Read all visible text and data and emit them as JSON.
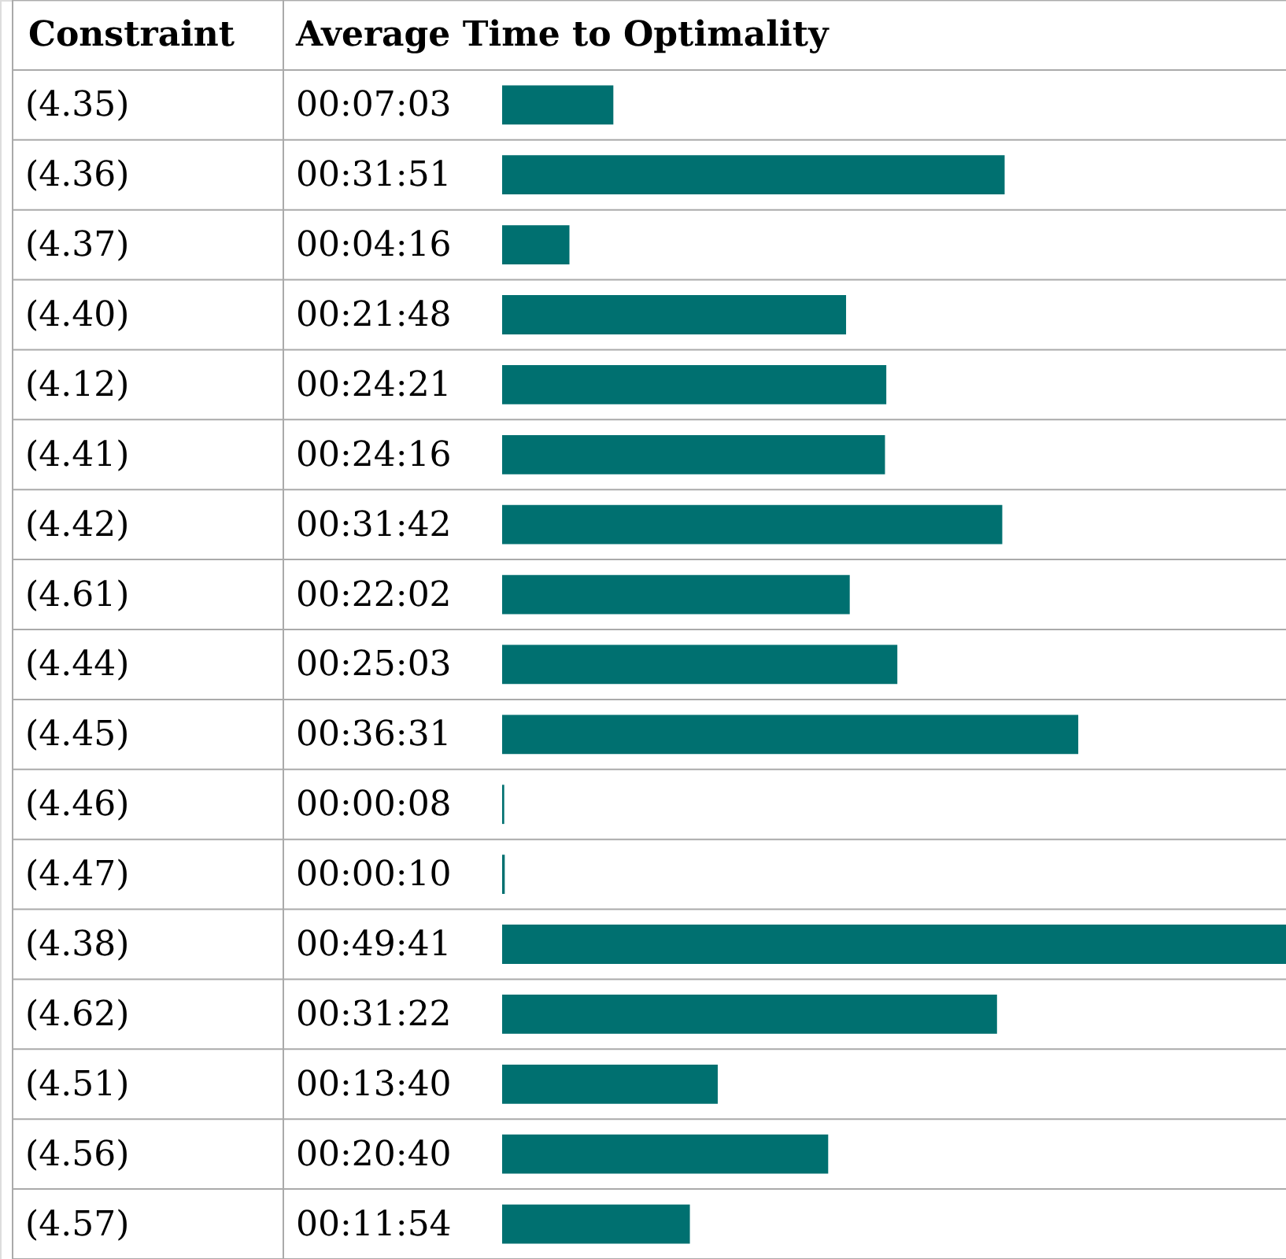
{
  "chart_data": {
    "type": "bar",
    "orientation": "horizontal",
    "ylabel": "Constraint",
    "xlabel": "Average Time to Optimality",
    "categories": [
      "(4.35)",
      "(4.36)",
      "(4.37)",
      "(4.40)",
      "(4.12)",
      "(4.41)",
      "(4.42)",
      "(4.61)",
      "(4.44)",
      "(4.45)",
      "(4.46)",
      "(4.47)",
      "(4.38)",
      "(4.62)",
      "(4.51)",
      "(4.56)",
      "(4.57)"
    ],
    "values": [
      423,
      1911,
      256,
      1308,
      1461,
      1456,
      1902,
      1322,
      1503,
      2191,
      8,
      10,
      2981,
      1882,
      820,
      1240,
      714
    ],
    "value_labels": [
      "00:07:03",
      "00:31:51",
      "00:04:16",
      "00:21:48",
      "00:24:21",
      "00:24:16",
      "00:31:42",
      "00:22:02",
      "00:25:03",
      "00:36:31",
      "00:00:08",
      "00:00:10",
      "00:49:41",
      "00:31:22",
      "00:13:40",
      "00:20:40",
      "00:11:54"
    ],
    "color": "#007070"
  }
}
